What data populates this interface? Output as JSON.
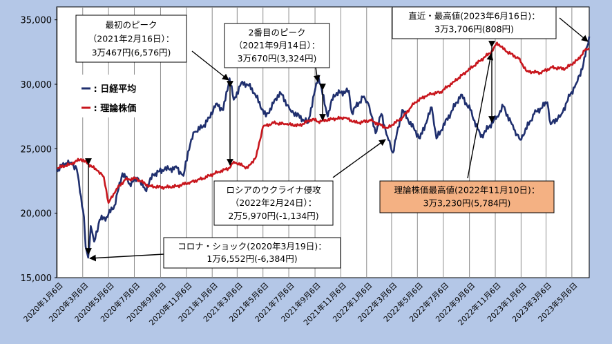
{
  "chart_data": {
    "type": "line",
    "title": "",
    "xlabel": "",
    "ylabel": "",
    "ylim": [
      15000,
      36000
    ],
    "yticks": [
      15000,
      20000,
      25000,
      30000,
      35000
    ],
    "ytick_labels": [
      "15,000",
      "20,000",
      "25,000",
      "30,000",
      "35,000"
    ],
    "x_range": [
      "2020-01-06",
      "2023-06-16"
    ],
    "xtick_labels": [
      "2020年1月6日",
      "2020年3月6日",
      "2020年5月6日",
      "2020年7月6日",
      "2020年9月6日",
      "2020年11月6日",
      "2021年1月6日",
      "2021年3月6日",
      "2021年5月6日",
      "2021年7月6日",
      "2021年9月6日",
      "2021年11月6日",
      "2022年1月6日",
      "2022年3月6日",
      "2022年5月6日",
      "2022年7月6日",
      "2022年9月6日",
      "2022年11月6日",
      "2023年1月6日",
      "2023年3月6日",
      "2023年5月6日"
    ],
    "grid": {
      "vertical": true,
      "horizontal": false
    },
    "legend_placement": "top-left",
    "colors": {
      "nikkei": "#1f2f6e",
      "theory": "#c8161d",
      "annotation_highlight_bg": "#f4b183",
      "outer_bg": "#b4c7e7"
    },
    "series": [
      {
        "name": "日経平均",
        "color": "#1f2f6e",
        "points": [
          [
            "2020-01-06",
            23200
          ],
          [
            "2020-01-20",
            23900
          ],
          [
            "2020-02-10",
            23800
          ],
          [
            "2020-02-21",
            23400
          ],
          [
            "2020-03-02",
            21300
          ],
          [
            "2020-03-09",
            19700
          ],
          [
            "2020-03-13",
            17400
          ],
          [
            "2020-03-19",
            16552
          ],
          [
            "2020-03-25",
            19000
          ],
          [
            "2020-04-02",
            17800
          ],
          [
            "2020-04-15",
            19500
          ],
          [
            "2020-05-01",
            19700
          ],
          [
            "2020-05-20",
            20600
          ],
          [
            "2020-06-08",
            23100
          ],
          [
            "2020-06-25",
            22300
          ],
          [
            "2020-07-15",
            22700
          ],
          [
            "2020-08-01",
            21800
          ],
          [
            "2020-08-20",
            23000
          ],
          [
            "2020-09-15",
            23400
          ],
          [
            "2020-10-15",
            23500
          ],
          [
            "2020-10-30",
            22900
          ],
          [
            "2020-11-10",
            24800
          ],
          [
            "2020-11-25",
            26300
          ],
          [
            "2020-12-15",
            26700
          ],
          [
            "2020-12-30",
            27400
          ],
          [
            "2021-01-15",
            28500
          ],
          [
            "2021-02-01",
            28000
          ],
          [
            "2021-02-16",
            30467
          ],
          [
            "2021-02-26",
            28800
          ],
          [
            "2021-03-18",
            30200
          ],
          [
            "2021-04-10",
            29700
          ],
          [
            "2021-05-13",
            27500
          ],
          [
            "2021-06-15",
            29400
          ],
          [
            "2021-07-10",
            28000
          ],
          [
            "2021-08-20",
            27000
          ],
          [
            "2021-09-14",
            30670
          ],
          [
            "2021-10-06",
            27500
          ],
          [
            "2021-10-20",
            29200
          ],
          [
            "2021-11-25",
            29500
          ],
          [
            "2021-12-02",
            27800
          ],
          [
            "2021-12-28",
            29000
          ],
          [
            "2022-01-10",
            28500
          ],
          [
            "2022-01-27",
            26200
          ],
          [
            "2022-02-10",
            27700
          ],
          [
            "2022-02-24",
            25970
          ],
          [
            "2022-03-09",
            24700
          ],
          [
            "2022-03-31",
            28000
          ],
          [
            "2022-05-12",
            25800
          ],
          [
            "2022-06-09",
            28200
          ],
          [
            "2022-06-20",
            25800
          ],
          [
            "2022-08-17",
            29200
          ],
          [
            "2022-09-08",
            28000
          ],
          [
            "2022-10-03",
            25900
          ],
          [
            "2022-11-10",
            27500
          ],
          [
            "2022-11-25",
            28300
          ],
          [
            "2022-12-20",
            26500
          ],
          [
            "2023-01-04",
            25700
          ],
          [
            "2023-02-06",
            27700
          ],
          [
            "2023-03-09",
            28600
          ],
          [
            "2023-03-17",
            26900
          ],
          [
            "2023-04-10",
            27600
          ],
          [
            "2023-05-01",
            29100
          ],
          [
            "2023-05-17",
            30100
          ],
          [
            "2023-06-02",
            31500
          ],
          [
            "2023-06-16",
            33706
          ]
        ]
      },
      {
        "name": "理論株価",
        "color": "#c8161d",
        "points": [
          [
            "2020-01-06",
            23500
          ],
          [
            "2020-02-05",
            23800
          ],
          [
            "2020-03-02",
            24200
          ],
          [
            "2020-03-20",
            23800
          ],
          [
            "2020-04-10",
            23300
          ],
          [
            "2020-04-25",
            22800
          ],
          [
            "2020-05-06",
            20800
          ],
          [
            "2020-05-25",
            21900
          ],
          [
            "2020-06-15",
            22600
          ],
          [
            "2020-07-10",
            22700
          ],
          [
            "2020-08-10",
            22100
          ],
          [
            "2020-09-15",
            22000
          ],
          [
            "2020-10-15",
            22100
          ],
          [
            "2020-11-15",
            22400
          ],
          [
            "2020-12-15",
            22700
          ],
          [
            "2021-01-20",
            23200
          ],
          [
            "2021-02-16",
            23500
          ],
          [
            "2021-02-26",
            24000
          ],
          [
            "2021-03-31",
            23500
          ],
          [
            "2021-04-20",
            24400
          ],
          [
            "2021-05-06",
            26700
          ],
          [
            "2021-05-31",
            27000
          ],
          [
            "2021-06-30",
            26900
          ],
          [
            "2021-07-31",
            26800
          ],
          [
            "2021-08-31",
            27300
          ],
          [
            "2021-09-14",
            27100
          ],
          [
            "2021-10-15",
            27300
          ],
          [
            "2021-11-15",
            27400
          ],
          [
            "2021-12-15",
            27000
          ],
          [
            "2022-01-15",
            27200
          ],
          [
            "2022-02-24",
            26600
          ],
          [
            "2022-03-31",
            27400
          ],
          [
            "2022-04-30",
            28600
          ],
          [
            "2022-05-31",
            29200
          ],
          [
            "2022-06-30",
            29400
          ],
          [
            "2022-07-31",
            30200
          ],
          [
            "2022-08-31",
            31000
          ],
          [
            "2022-09-30",
            31800
          ],
          [
            "2022-10-31",
            32600
          ],
          [
            "2022-11-10",
            33230
          ],
          [
            "2022-11-30",
            32600
          ],
          [
            "2022-12-31",
            32000
          ],
          [
            "2023-01-20",
            31000
          ],
          [
            "2023-02-20",
            30900
          ],
          [
            "2023-03-20",
            31300
          ],
          [
            "2023-04-20",
            31200
          ],
          [
            "2023-05-20",
            31900
          ],
          [
            "2023-06-05",
            32600
          ],
          [
            "2023-06-16",
            32800
          ]
        ]
      }
    ],
    "legend": [
      {
        "label": "一 : 日経平均",
        "color": "#1f2f6e"
      },
      {
        "label": "一 : 理論株価",
        "color": "#c8161d"
      }
    ],
    "annotations": [
      {
        "id": "first-peak",
        "lines": [
          "最初のピーク",
          "（2021年2月16日）：",
          "3万467円(6,576円)"
        ],
        "highlight": false
      },
      {
        "id": "second-peak",
        "lines": [
          "2番目のピーク",
          "（2021年9月14日）：",
          "3万670円(3,324円)"
        ],
        "highlight": false
      },
      {
        "id": "recent-high",
        "lines": [
          "直近・最高値(2023年6月16日)：",
          "3万3,706円(808円)"
        ],
        "highlight": false
      },
      {
        "id": "russia-invasion",
        "lines": [
          "ロシアのウクライナ侵攻",
          "（2022年2月24日）：",
          "2万5,970円(-1,134円)"
        ],
        "highlight": false
      },
      {
        "id": "theory-high",
        "lines": [
          "理論株価最高値(2022年11月10日)：",
          "3万3,230円(5,784円)"
        ],
        "highlight": true
      },
      {
        "id": "corona-shock",
        "lines": [
          "コロナ・ショック(2020年3月19日)：",
          "1万6,552円(-6,384円)"
        ],
        "highlight": false
      }
    ]
  }
}
